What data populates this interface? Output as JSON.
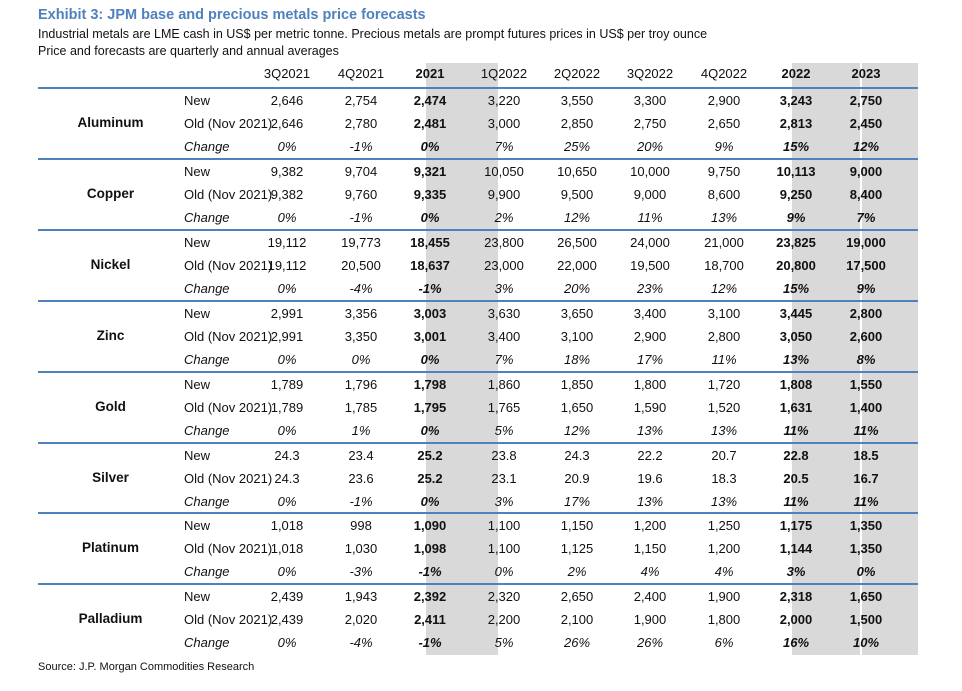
{
  "title": "Exhibit 3: JPM base and precious metals price forecasts",
  "subtitle_1": "Industrial metals are LME cash in US$ per metric tonne. Precious metals are prompt futures prices in US$ per troy ounce",
  "subtitle_2": "Price and forecasts are quarterly and annual averages",
  "source": "Source: J.P. Morgan Commodities Research",
  "colors": {
    "title": "#4f81bd",
    "rule": "#4f81bd",
    "shade": "#d9d9d9"
  },
  "chart_data": {
    "type": "table",
    "columns": [
      "3Q2021",
      "4Q2021",
      "2021",
      "1Q2022",
      "2Q2022",
      "3Q2022",
      "4Q2022",
      "2022",
      "2023"
    ],
    "shaded_columns": [
      "2021",
      "2022",
      "2023"
    ],
    "row_labels": [
      "New",
      "Old (Nov 2021)",
      "Change"
    ],
    "metals": [
      {
        "name": "Aluminum",
        "new": [
          "2,646",
          "2,754",
          "2,474",
          "3,220",
          "3,550",
          "3,300",
          "2,900",
          "3,243",
          "2,750"
        ],
        "old": [
          "2,646",
          "2,780",
          "2,481",
          "3,000",
          "2,850",
          "2,750",
          "2,650",
          "2,813",
          "2,450"
        ],
        "change": [
          "0%",
          "-1%",
          "0%",
          "7%",
          "25%",
          "20%",
          "9%",
          "15%",
          "12%"
        ]
      },
      {
        "name": "Copper",
        "new": [
          "9,382",
          "9,704",
          "9,321",
          "10,050",
          "10,650",
          "10,000",
          "9,750",
          "10,113",
          "9,000"
        ],
        "old": [
          "9,382",
          "9,760",
          "9,335",
          "9,900",
          "9,500",
          "9,000",
          "8,600",
          "9,250",
          "8,400"
        ],
        "change": [
          "0%",
          "-1%",
          "0%",
          "2%",
          "12%",
          "11%",
          "13%",
          "9%",
          "7%"
        ]
      },
      {
        "name": "Nickel",
        "new": [
          "19,112",
          "19,773",
          "18,455",
          "23,800",
          "26,500",
          "24,000",
          "21,000",
          "23,825",
          "19,000"
        ],
        "old": [
          "19,112",
          "20,500",
          "18,637",
          "23,000",
          "22,000",
          "19,500",
          "18,700",
          "20,800",
          "17,500"
        ],
        "change": [
          "0%",
          "-4%",
          "-1%",
          "3%",
          "20%",
          "23%",
          "12%",
          "15%",
          "9%"
        ]
      },
      {
        "name": "Zinc",
        "new": [
          "2,991",
          "3,356",
          "3,003",
          "3,630",
          "3,650",
          "3,400",
          "3,100",
          "3,445",
          "2,800"
        ],
        "old": [
          "2,991",
          "3,350",
          "3,001",
          "3,400",
          "3,100",
          "2,900",
          "2,800",
          "3,050",
          "2,600"
        ],
        "change": [
          "0%",
          "0%",
          "0%",
          "7%",
          "18%",
          "17%",
          "11%",
          "13%",
          "8%"
        ]
      },
      {
        "name": "Gold",
        "new": [
          "1,789",
          "1,796",
          "1,798",
          "1,860",
          "1,850",
          "1,800",
          "1,720",
          "1,808",
          "1,550"
        ],
        "old": [
          "1,789",
          "1,785",
          "1,795",
          "1,765",
          "1,650",
          "1,590",
          "1,520",
          "1,631",
          "1,400"
        ],
        "change": [
          "0%",
          "1%",
          "0%",
          "5%",
          "12%",
          "13%",
          "13%",
          "11%",
          "11%"
        ]
      },
      {
        "name": "Silver",
        "new": [
          "24.3",
          "23.4",
          "25.2",
          "23.8",
          "24.3",
          "22.2",
          "20.7",
          "22.8",
          "18.5"
        ],
        "old": [
          "24.3",
          "23.6",
          "25.2",
          "23.1",
          "20.9",
          "19.6",
          "18.3",
          "20.5",
          "16.7"
        ],
        "change": [
          "0%",
          "-1%",
          "0%",
          "3%",
          "17%",
          "13%",
          "13%",
          "11%",
          "11%"
        ]
      },
      {
        "name": "Platinum",
        "new": [
          "1,018",
          "998",
          "1,090",
          "1,100",
          "1,150",
          "1,200",
          "1,250",
          "1,175",
          "1,350"
        ],
        "old": [
          "1,018",
          "1,030",
          "1,098",
          "1,100",
          "1,125",
          "1,150",
          "1,200",
          "1,144",
          "1,350"
        ],
        "change": [
          "0%",
          "-3%",
          "-1%",
          "0%",
          "2%",
          "4%",
          "4%",
          "3%",
          "0%"
        ]
      },
      {
        "name": "Palladium",
        "new": [
          "2,439",
          "1,943",
          "2,392",
          "2,320",
          "2,650",
          "2,400",
          "1,900",
          "2,318",
          "1,650"
        ],
        "old": [
          "2,439",
          "2,020",
          "2,411",
          "2,200",
          "2,100",
          "1,900",
          "1,800",
          "2,000",
          "1,500"
        ],
        "change": [
          "0%",
          "-4%",
          "-1%",
          "5%",
          "26%",
          "26%",
          "6%",
          "16%",
          "10%"
        ]
      }
    ]
  }
}
